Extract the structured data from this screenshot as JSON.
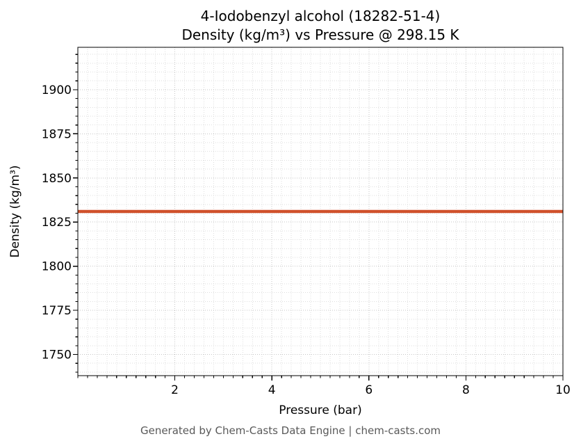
{
  "figure": {
    "footer": "Generated by Chem-Casts Data Engine | chem-casts.com"
  },
  "chart_data": {
    "type": "line",
    "title": "4-Iodobenzyl alcohol (18282-51-4)\nDensity (kg/m³) vs Pressure @ 298.15 K",
    "title_lines": [
      "4-Iodobenzyl alcohol (18282-51-4)",
      "Density (kg/m³) vs Pressure @ 298.15 K"
    ],
    "compound": "4-Iodobenzyl alcohol",
    "cas_number": "18282-51-4",
    "temperature": "298.15 K",
    "xlabel": "Pressure (bar)",
    "ylabel": "Density (kg/m³)",
    "xlim": [
      0,
      10
    ],
    "ylim": [
      1738,
      1924
    ],
    "xticks": [
      2,
      4,
      6,
      8,
      10
    ],
    "yticks": [
      1750,
      1775,
      1800,
      1825,
      1850,
      1875,
      1900
    ],
    "minor_x_step": 0.2,
    "minor_y_step": 5,
    "grid": true,
    "legend": "none",
    "series": [
      {
        "name": "Density",
        "color": "#d0512b",
        "x": [
          0,
          1,
          2,
          3,
          4,
          5,
          6,
          7,
          8,
          9,
          10
        ],
        "y": [
          1831,
          1831,
          1831,
          1831,
          1831,
          1831,
          1831,
          1831,
          1831,
          1831,
          1831
        ]
      }
    ]
  },
  "style": {
    "grid_minor_color": "#dedede",
    "grid_major_color": "#c6c6c6",
    "axis_color": "#000000",
    "line_width": 4.5,
    "footer_color": "#595959",
    "background": "#ffffff"
  }
}
